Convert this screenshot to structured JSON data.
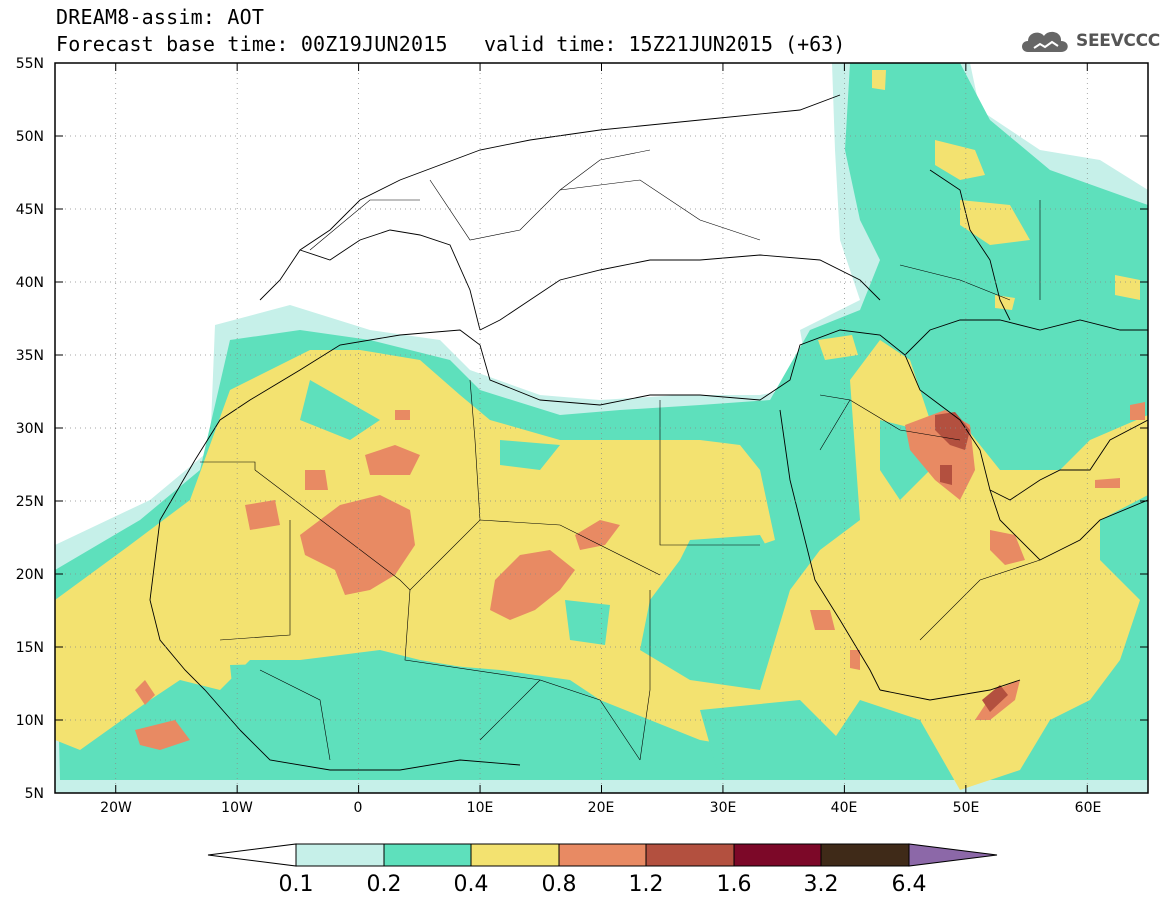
{
  "title": {
    "line1": "DREAM8-assim: AOT",
    "line2": "Forecast base time: 00Z19JUN2015",
    "valid": "valid time: 15Z21JUN2015 (+63)"
  },
  "logo": {
    "text": "SEEVCCC",
    "icon": "cloud-icon"
  },
  "axes": {
    "lat_labels": [
      "55N",
      "50N",
      "45N",
      "40N",
      "35N",
      "30N",
      "25N",
      "20N",
      "15N",
      "10N",
      "5N"
    ],
    "lon_labels": [
      "20W",
      "10W",
      "0",
      "10E",
      "20E",
      "30E",
      "40E",
      "50E",
      "60E"
    ],
    "lat_range": [
      5,
      55
    ],
    "lon_range": [
      -25,
      65
    ]
  },
  "colorbar": {
    "labels": [
      "0.1",
      "0.2",
      "0.4",
      "0.8",
      "1.2",
      "1.6",
      "3.2",
      "6.4"
    ],
    "colors": [
      "#ffffff",
      "#c6f0e9",
      "#5ee0bc",
      "#f3e270",
      "#e88a63",
      "#b3503f",
      "#7c0828",
      "#3f2a18",
      "#8c68a8"
    ]
  }
}
